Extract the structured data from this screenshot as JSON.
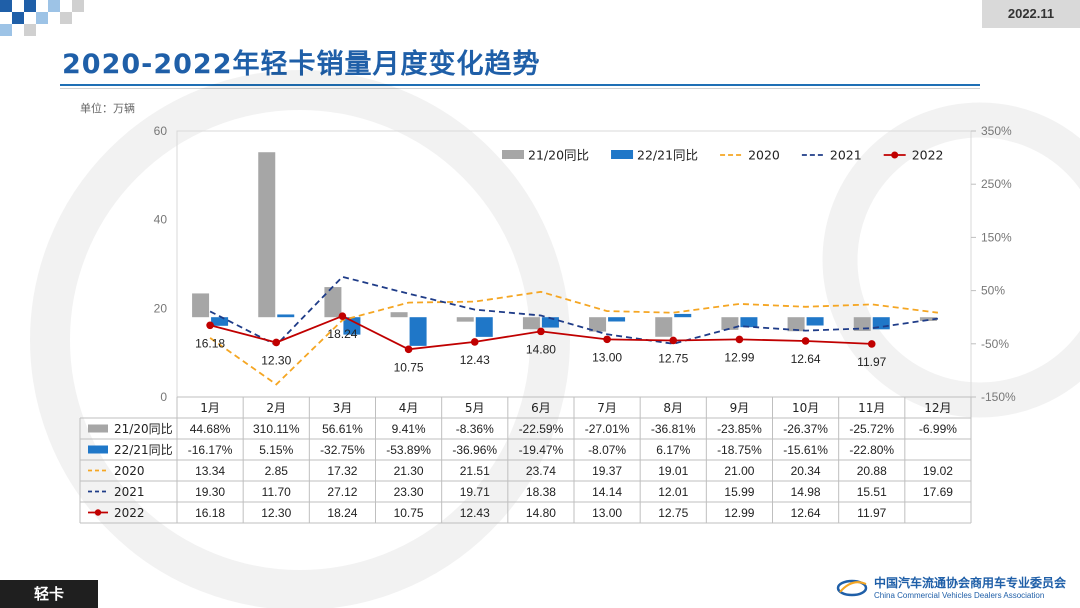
{
  "header": {
    "date_badge": "2022.11",
    "title": "2020-2022年轻卡销量月度变化趋势",
    "unit_label": "单位：万辆"
  },
  "footer": {
    "category_tag": "轻卡",
    "org_name_cn": "中国汽车流通协会商用车专业委员会",
    "org_name_en": "China Commercial Vehicles Dealers Association"
  },
  "colors": {
    "accent": "#1f5fa8",
    "bar_2120": "#a6a6a6",
    "bar_2221": "#1f77c8",
    "line_2020": "#f5a623",
    "line_2021": "#1f3c88",
    "line_2022": "#c00000"
  },
  "chart_data": {
    "type": "bar+line",
    "categories": [
      "1月",
      "2月",
      "3月",
      "4月",
      "5月",
      "6月",
      "7月",
      "8月",
      "9月",
      "10月",
      "11月",
      "12月"
    ],
    "y_left": {
      "ylim": [
        0,
        60
      ],
      "ticks": [
        "0",
        "20",
        "40",
        "60"
      ]
    },
    "y_right": {
      "ylim": [
        -150,
        350
      ],
      "ticks": [
        "-150%",
        "-50%",
        "50%",
        "150%",
        "250%",
        "350%"
      ]
    },
    "legend_position": "top-right",
    "series": [
      {
        "name": "21/20同比",
        "type": "bar",
        "axis": "right",
        "icon": "grey-square",
        "values": [
          44.68,
          310.11,
          56.61,
          9.41,
          -8.36,
          -22.59,
          -27.01,
          -36.81,
          -23.85,
          -26.37,
          -25.72,
          -6.99
        ],
        "labels": [
          "44.68%",
          "310.11%",
          "56.61%",
          "9.41%",
          "-8.36%",
          "-22.59%",
          "-27.01%",
          "-36.81%",
          "-23.85%",
          "-26.37%",
          "-25.72%",
          "-6.99%"
        ]
      },
      {
        "name": "22/21同比",
        "type": "bar",
        "axis": "right",
        "icon": "blue-square",
        "values": [
          -16.17,
          5.15,
          -32.75,
          -53.89,
          -36.96,
          -19.47,
          -8.07,
          6.17,
          -18.75,
          -15.61,
          -22.8,
          null
        ],
        "labels": [
          "-16.17%",
          "5.15%",
          "-32.75%",
          "-53.89%",
          "-36.96%",
          "-19.47%",
          "-8.07%",
          "6.17%",
          "-18.75%",
          "-15.61%",
          "-22.80%",
          ""
        ]
      },
      {
        "name": "2020",
        "type": "line",
        "axis": "left",
        "style": "dashed",
        "values": [
          13.34,
          2.85,
          17.32,
          21.3,
          21.51,
          23.74,
          19.37,
          19.01,
          21.0,
          20.34,
          20.88,
          19.02
        ],
        "labels": [
          "13.34",
          "2.85",
          "17.32",
          "21.30",
          "21.51",
          "23.74",
          "19.37",
          "19.01",
          "21.00",
          "20.34",
          "20.88",
          "19.02"
        ]
      },
      {
        "name": "2021",
        "type": "line",
        "axis": "left",
        "style": "dashed",
        "values": [
          19.3,
          11.7,
          27.12,
          23.3,
          19.71,
          18.38,
          14.14,
          12.01,
          15.99,
          14.98,
          15.51,
          17.69
        ],
        "labels": [
          "19.30",
          "11.70",
          "27.12",
          "23.30",
          "19.71",
          "18.38",
          "14.14",
          "12.01",
          "15.99",
          "14.98",
          "15.51",
          "17.69"
        ]
      },
      {
        "name": "2022",
        "type": "line",
        "axis": "left",
        "style": "solid-markers",
        "values": [
          16.18,
          12.3,
          18.24,
          10.75,
          12.43,
          14.8,
          13.0,
          12.75,
          12.99,
          12.64,
          11.97,
          null
        ],
        "labels": [
          "16.18",
          "12.30",
          "18.24",
          "10.75",
          "12.43",
          "14.80",
          "13.00",
          "12.75",
          "12.99",
          "12.64",
          "11.97",
          ""
        ]
      }
    ],
    "data_labels_2022": [
      "16.18",
      "12.30",
      "18.24",
      "10.75",
      "12.43",
      "14.80",
      "13.00",
      "12.75",
      "12.99",
      "12.64",
      "11.97"
    ]
  }
}
